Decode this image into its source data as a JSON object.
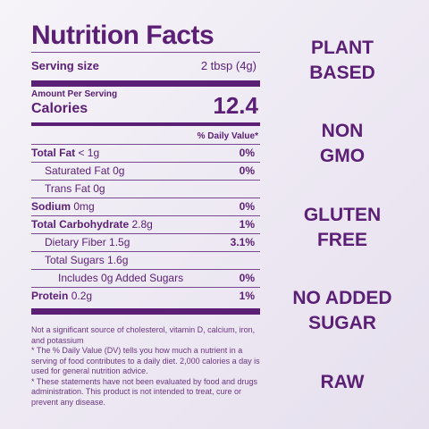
{
  "title": "Nutrition Facts",
  "serving": {
    "label": "Serving size",
    "value": "2 tbsp (4g)"
  },
  "amount_per_serving": "Amount Per Serving",
  "calories": {
    "label": "Calories",
    "value": "12.4"
  },
  "dv_header": "% Daily Value*",
  "nutrients": [
    {
      "label": "Total Fat",
      "amount": "< 1g",
      "dv": "0%"
    },
    {
      "label": "Saturated Fat",
      "amount": "0g",
      "dv": "0%"
    },
    {
      "label": "Trans Fat",
      "amount": "0g",
      "dv": ""
    },
    {
      "label": "Sodium",
      "amount": "0mg",
      "dv": "0%"
    },
    {
      "label": "Total Carbohydrate",
      "amount": "2.8g",
      "dv": "1%"
    },
    {
      "label": "Dietary Fiber",
      "amount": "1.5g",
      "dv": "3.1%"
    },
    {
      "label": "Total Sugars",
      "amount": "1.6g",
      "dv": ""
    },
    {
      "label": "Includes 0g Added Sugars",
      "amount": "",
      "dv": "0%"
    },
    {
      "label": "Protein",
      "amount": "0.2g",
      "dv": "1%"
    }
  ],
  "footnotes": [
    "Not a significant source of cholesterol, vitamin D, calcium, iron, and potassium",
    "* The % Daily Value (DV) tells you how much a nutrient in a serving of food contributes to a daily diet. 2,000 calories a day is used for general nutrition advice.",
    "* These statements have not been evaluated by food and drugs administration. This product is not intended to treat, cure or prevent any disease."
  ],
  "claims": [
    "PLANT\nBASED",
    "NON\nGMO",
    "GLUTEN\nFREE",
    "NO ADDED\nSUGAR",
    "RAW"
  ],
  "colors": {
    "text": "#5b2075",
    "background": "#ece7f2"
  }
}
